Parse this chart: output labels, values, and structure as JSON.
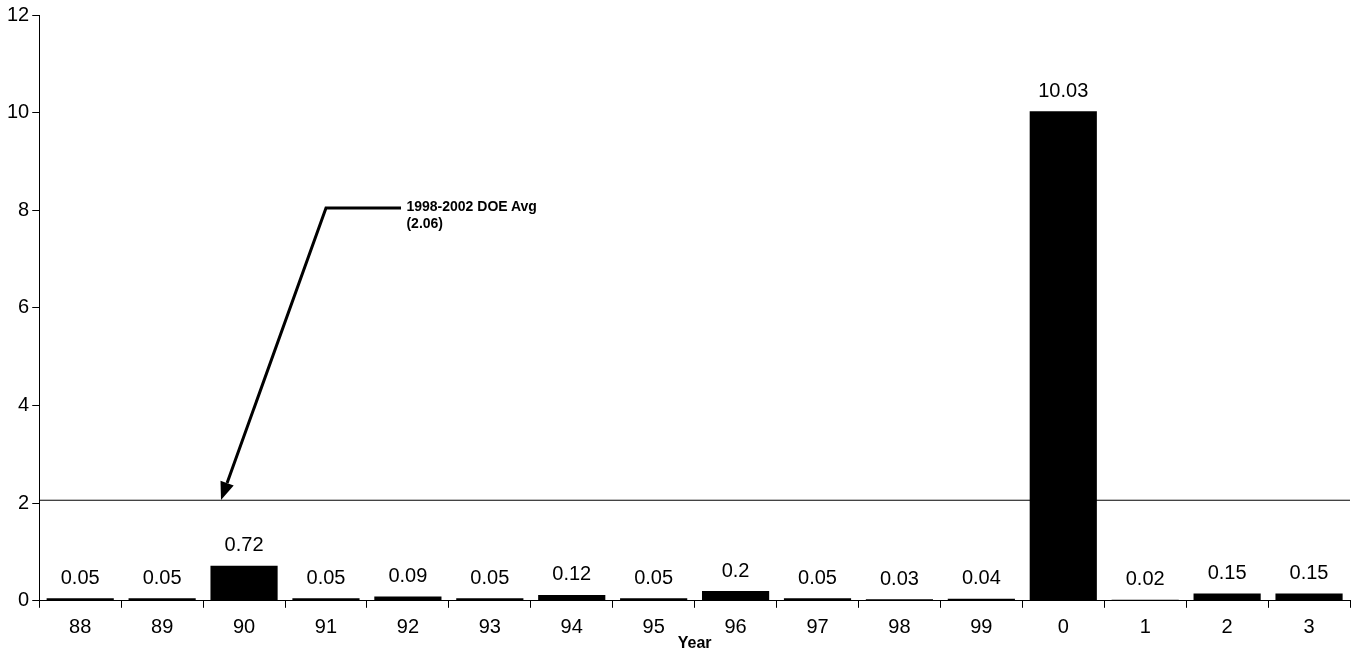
{
  "chart_data": {
    "type": "bar",
    "xlabel": "Year",
    "categories": [
      "88",
      "89",
      "90",
      "91",
      "92",
      "93",
      "94",
      "95",
      "96",
      "97",
      "98",
      "99",
      "0",
      "1",
      "2",
      "3"
    ],
    "values": [
      0.05,
      0.05,
      0.72,
      0.05,
      0.09,
      0.05,
      0.12,
      0.05,
      0.2,
      0.05,
      0.03,
      0.04,
      10.03,
      0.02,
      0.15,
      0.15
    ],
    "color": "#000000",
    "data_labels": true,
    "grid": false,
    "legend": false,
    "ylim": [
      0,
      12
    ],
    "yticks": [
      0,
      2,
      4,
      6,
      8,
      10,
      12
    ],
    "ref_lines": [
      {
        "axis": "y",
        "value": 2.06,
        "color": "#000000",
        "label": "1998-2002 DOE Avg (2.06)"
      }
    ]
  }
}
